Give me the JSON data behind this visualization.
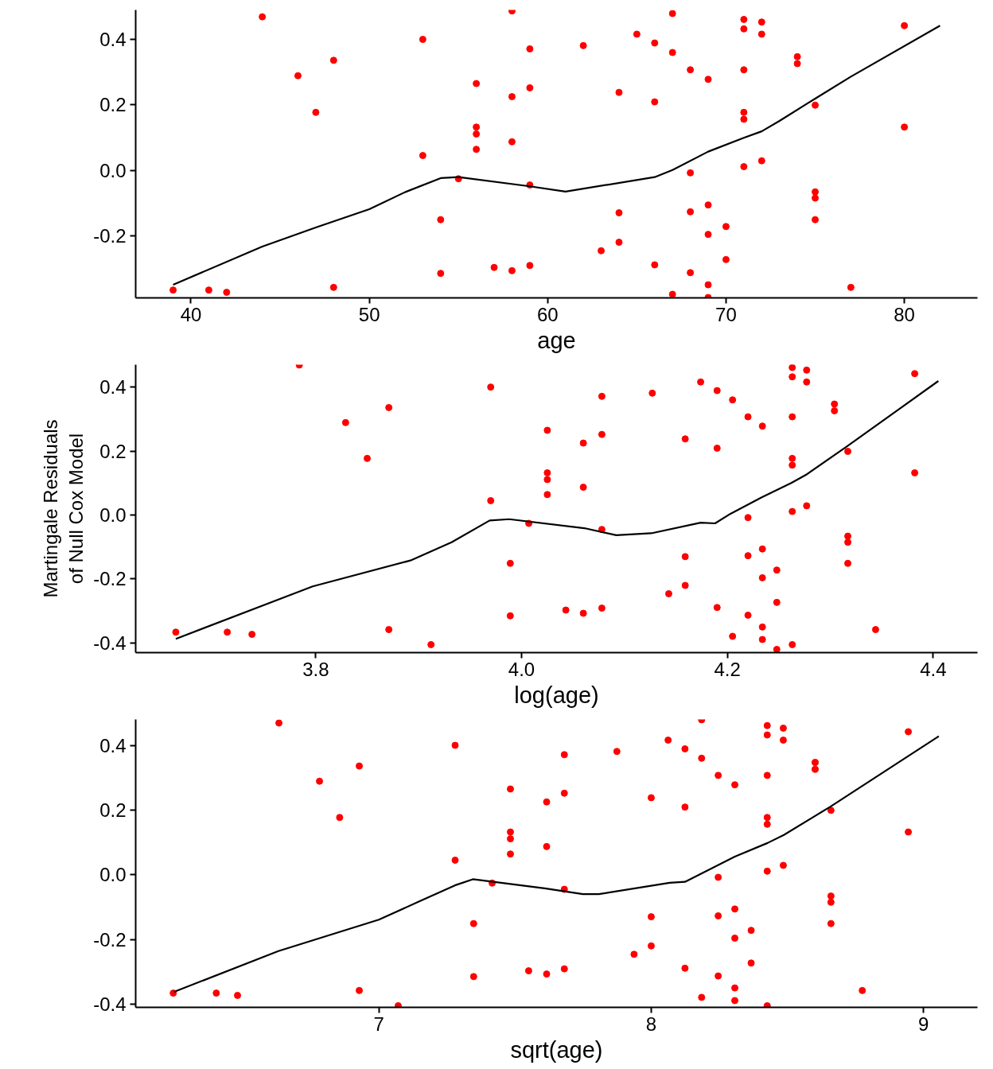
{
  "chart_data": [
    {
      "type": "scatter",
      "xlabel": "age",
      "xlim": [
        36.9,
        84.1
      ],
      "ylim": [
        -0.39,
        0.49
      ],
      "xticks": [
        40,
        50,
        60,
        70,
        80
      ],
      "yticks": [
        {
          "value": -0.2,
          "label": "-0.2"
        },
        {
          "value": 0,
          "label": "0.0"
        },
        {
          "value": 0.2,
          "label": "0.2"
        },
        {
          "value": 0.4,
          "label": "0.4"
        }
      ],
      "series": [
        {
          "marker": "circle",
          "color": "#ff0000",
          "x": [
            39,
            41,
            42,
            44,
            46,
            47,
            48,
            48,
            53,
            53,
            54,
            54,
            55,
            56,
            56,
            56,
            56,
            57,
            58,
            58,
            58,
            58,
            59,
            59,
            59,
            59,
            62,
            63,
            64,
            64,
            64,
            65,
            66,
            66,
            66,
            67,
            67,
            67,
            68,
            68,
            68,
            68,
            69,
            69,
            69,
            69,
            69,
            70,
            70,
            71,
            71,
            71,
            71,
            71,
            71,
            72,
            72,
            72,
            74,
            74,
            75,
            75,
            75,
            75,
            77,
            80,
            80
          ],
          "values": [
            -0.366,
            -0.366,
            -0.373,
            0.469,
            0.289,
            0.177,
            0.336,
            -0.358,
            0.4,
            0.045,
            -0.151,
            -0.315,
            -0.026,
            0.265,
            0.132,
            0.111,
            0.064,
            -0.297,
            0.487,
            0.225,
            0.087,
            -0.307,
            0.371,
            0.252,
            -0.045,
            -0.291,
            0.381,
            -0.246,
            0.238,
            -0.13,
            -0.22,
            0.416,
            0.389,
            0.209,
            -0.289,
            0.479,
            0.36,
            -0.379,
            0.307,
            -0.008,
            -0.127,
            -0.313,
            0.278,
            -0.106,
            -0.196,
            -0.35,
            -0.389,
            -0.172,
            -0.273,
            0.461,
            0.432,
            0.307,
            0.177,
            0.156,
            0.011,
            0.453,
            0.416,
            0.029,
            0.347,
            0.326,
            0.199,
            -0.066,
            -0.085,
            -0.151,
            -0.358,
            0.442,
            0.132
          ]
        },
        {
          "type": "line",
          "color": "#000000",
          "x": [
            39,
            44,
            47,
            50,
            52,
            54,
            55,
            59,
            61,
            66,
            67,
            69,
            71,
            72,
            73,
            75,
            77,
            82
          ],
          "values": [
            -0.35,
            -0.233,
            -0.175,
            -0.119,
            -0.067,
            -0.024,
            -0.021,
            -0.049,
            -0.065,
            -0.021,
            0.001,
            0.057,
            0.099,
            0.119,
            0.151,
            0.219,
            0.286,
            0.442
          ]
        }
      ]
    },
    {
      "type": "scatter",
      "xlabel": "log(age)",
      "ylabel": "Martingale Residuals\nof Null Cox Model",
      "xlim": [
        3.625,
        4.443
      ],
      "ylim": [
        -0.43,
        0.47
      ],
      "xticks": [
        3.8,
        {
          "value": 4,
          "label": "4.0"
        },
        4.2,
        4.4
      ],
      "yticks": [
        {
          "value": -0.4,
          "label": "-0.4"
        },
        {
          "value": -0.2,
          "label": "-0.2"
        },
        {
          "value": 0,
          "label": "0.0"
        },
        {
          "value": 0.2,
          "label": "0.2"
        },
        {
          "value": 0.4,
          "label": "0.4"
        }
      ],
      "series": [
        {
          "marker": "circle",
          "color": "#ff0000",
          "x": [
            3.664,
            3.714,
            3.738,
            3.784,
            3.829,
            3.85,
            3.871,
            3.871,
            3.912,
            3.97,
            3.97,
            3.989,
            3.989,
            4.007,
            4.025,
            4.025,
            4.025,
            4.025,
            4.043,
            4.06,
            4.06,
            4.06,
            4.078,
            4.078,
            4.078,
            4.078,
            4.127,
            4.143,
            4.159,
            4.159,
            4.159,
            4.174,
            4.19,
            4.19,
            4.19,
            4.205,
            4.205,
            4.22,
            4.22,
            4.22,
            4.22,
            4.234,
            4.234,
            4.234,
            4.234,
            4.234,
            4.248,
            4.248,
            4.248,
            4.263,
            4.263,
            4.263,
            4.263,
            4.263,
            4.263,
            4.263,
            4.277,
            4.277,
            4.277,
            4.304,
            4.304,
            4.317,
            4.317,
            4.317,
            4.317,
            4.344,
            4.382,
            4.382
          ],
          "values": [
            -0.366,
            -0.366,
            -0.373,
            0.469,
            0.289,
            0.177,
            0.336,
            -0.358,
            -0.405,
            0.4,
            0.045,
            -0.151,
            -0.315,
            -0.026,
            0.265,
            0.132,
            0.111,
            0.064,
            -0.297,
            0.225,
            0.087,
            -0.307,
            0.371,
            0.252,
            -0.045,
            -0.291,
            0.381,
            -0.246,
            0.238,
            -0.13,
            -0.22,
            0.416,
            0.389,
            0.209,
            -0.289,
            0.36,
            -0.379,
            0.307,
            -0.008,
            -0.127,
            -0.313,
            0.278,
            -0.106,
            -0.196,
            -0.35,
            -0.389,
            -0.172,
            -0.273,
            -0.42,
            0.461,
            0.432,
            0.307,
            0.177,
            0.156,
            0.011,
            -0.405,
            0.453,
            0.416,
            0.029,
            0.347,
            0.326,
            0.199,
            -0.066,
            -0.085,
            -0.151,
            -0.358,
            0.442,
            0.132
          ]
        },
        {
          "type": "line",
          "color": "#000000",
          "x": [
            3.664,
            3.797,
            3.892,
            3.932,
            3.969,
            3.988,
            4.061,
            4.092,
            4.126,
            4.174,
            4.188,
            4.203,
            4.233,
            4.262,
            4.277,
            4.316,
            4.405
          ],
          "values": [
            -0.387,
            -0.223,
            -0.142,
            -0.085,
            -0.017,
            -0.013,
            -0.041,
            -0.063,
            -0.057,
            -0.024,
            -0.026,
            0.004,
            0.055,
            0.1,
            0.127,
            0.214,
            0.419
          ]
        }
      ]
    },
    {
      "type": "scatter",
      "xlabel": "sqrt(age)",
      "xlim": [
        6.107,
        9.198
      ],
      "ylim": [
        -0.41,
        0.48
      ],
      "xticks": [
        7,
        8,
        9
      ],
      "yticks": [
        {
          "value": -0.4,
          "label": "-0.4"
        },
        {
          "value": -0.2,
          "label": "-0.2"
        },
        {
          "value": 0,
          "label": "0.0"
        },
        {
          "value": 0.2,
          "label": "0.2"
        },
        {
          "value": 0.4,
          "label": "0.4"
        }
      ],
      "series": [
        {
          "marker": "circle",
          "color": "#ff0000",
          "x": [
            6.245,
            6.403,
            6.481,
            6.633,
            6.782,
            6.856,
            6.928,
            6.928,
            7.071,
            7.28,
            7.28,
            7.348,
            7.348,
            7.416,
            7.483,
            7.483,
            7.483,
            7.483,
            7.55,
            7.616,
            7.616,
            7.616,
            7.681,
            7.681,
            7.681,
            7.681,
            7.874,
            7.937,
            8.0,
            8.0,
            8.0,
            8.062,
            8.124,
            8.124,
            8.124,
            8.185,
            8.185,
            8.185,
            8.246,
            8.246,
            8.246,
            8.246,
            8.307,
            8.307,
            8.307,
            8.307,
            8.307,
            8.367,
            8.367,
            8.426,
            8.426,
            8.426,
            8.426,
            8.426,
            8.426,
            8.426,
            8.485,
            8.485,
            8.485,
            8.602,
            8.602,
            8.66,
            8.66,
            8.66,
            8.66,
            8.775,
            8.944,
            8.944
          ],
          "values": [
            -0.366,
            -0.366,
            -0.373,
            0.469,
            0.289,
            0.177,
            0.336,
            -0.358,
            -0.405,
            0.4,
            0.045,
            -0.151,
            -0.315,
            -0.026,
            0.265,
            0.132,
            0.111,
            0.064,
            -0.297,
            0.225,
            0.087,
            -0.307,
            0.371,
            0.252,
            -0.045,
            -0.291,
            0.381,
            -0.246,
            0.238,
            -0.13,
            -0.22,
            0.416,
            0.389,
            0.209,
            -0.289,
            0.479,
            0.36,
            -0.379,
            0.307,
            -0.008,
            -0.127,
            -0.313,
            0.278,
            -0.106,
            -0.196,
            -0.35,
            -0.389,
            -0.172,
            -0.273,
            0.461,
            0.432,
            0.307,
            0.177,
            0.156,
            0.011,
            -0.405,
            0.453,
            0.416,
            0.029,
            0.347,
            0.326,
            0.199,
            -0.066,
            -0.085,
            -0.151,
            -0.358,
            0.442,
            0.132
          ]
        },
        {
          "type": "line",
          "color": "#000000",
          "x": [
            6.248,
            6.631,
            7.0,
            7.15,
            7.279,
            7.345,
            7.609,
            7.749,
            7.808,
            8.068,
            8.124,
            8.307,
            8.427,
            8.487,
            8.657,
            9.056
          ],
          "values": [
            -0.362,
            -0.236,
            -0.139,
            -0.082,
            -0.033,
            -0.014,
            -0.042,
            -0.06,
            -0.06,
            -0.025,
            -0.022,
            0.056,
            0.098,
            0.123,
            0.21,
            0.428
          ]
        }
      ]
    }
  ]
}
